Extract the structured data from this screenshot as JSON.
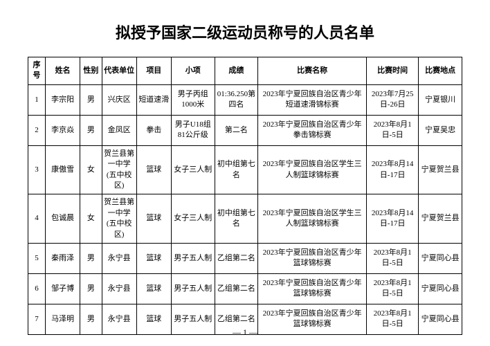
{
  "title": "拟授予国家二级运动员称号的人员名单",
  "headers": {
    "idx": "序号",
    "name": "姓名",
    "sex": "性别",
    "unit": "代表单位",
    "sport": "项目",
    "event": "小项",
    "result": "成绩",
    "comp": "比赛名称",
    "time": "比赛时间",
    "loc": "比赛地点"
  },
  "rows": [
    {
      "idx": "1",
      "name": "李宗阳",
      "sex": "男",
      "unit": "兴庆区",
      "sport": "短道速滑",
      "event": "男子丙组1000米",
      "result": "01:36.250第四名",
      "comp": "2023年宁夏回族自治区青少年短道速滑锦标赛",
      "time": "2023年7月25日-26日",
      "loc": "宁夏银川"
    },
    {
      "idx": "2",
      "name": "李京焱",
      "sex": "男",
      "unit": "金凤区",
      "sport": "拳击",
      "event": "男子U18组81公斤级",
      "result": "第二名",
      "comp": "2023年宁夏回族自治区青少年拳击锦标赛",
      "time": "2023年8月1日-5日",
      "loc": "宁夏吴忠"
    },
    {
      "idx": "3",
      "name": "康傲雪",
      "sex": "女",
      "unit": "贺兰县第一中学(五中校区)",
      "sport": "篮球",
      "event": "女子三人制",
      "result": "初中组第七名",
      "comp": "2023年宁夏回族自治区学生三人制篮球锦标赛",
      "time": "2023年8月14日-17日",
      "loc": "宁夏贺兰县"
    },
    {
      "idx": "4",
      "name": "包诚晨",
      "sex": "女",
      "unit": "贺兰县第一中学(五中校区)",
      "sport": "篮球",
      "event": "女子三人制",
      "result": "初中组第七名",
      "comp": "2023年宁夏回族自治区学生三人制篮球锦标赛",
      "time": "2023年8月14日-17日",
      "loc": "宁夏贺兰县"
    },
    {
      "idx": "5",
      "name": "秦雨泽",
      "sex": "男",
      "unit": "永宁县",
      "sport": "篮球",
      "event": "男子五人制",
      "result": "乙组第二名",
      "comp": "2023年宁夏回族自治区青少年篮球锦标赛",
      "time": "2023年8月1日-5日",
      "loc": "宁夏同心县"
    },
    {
      "idx": "6",
      "name": "邹子博",
      "sex": "男",
      "unit": "永宁县",
      "sport": "篮球",
      "event": "男子五人制",
      "result": "乙组第二名",
      "comp": "2023年宁夏回族自治区青少年篮球锦标赛",
      "time": "2023年8月1日-5日",
      "loc": "宁夏同心县"
    },
    {
      "idx": "7",
      "name": "马泽明",
      "sex": "男",
      "unit": "永宁县",
      "sport": "篮球",
      "event": "男子五人制",
      "result": "乙组第二名",
      "comp": "2023年宁夏回族自治区青少年篮球锦标赛",
      "time": "2023年8月1日-5日",
      "loc": "宁夏同心县"
    }
  ],
  "page_number": "— 1 —"
}
